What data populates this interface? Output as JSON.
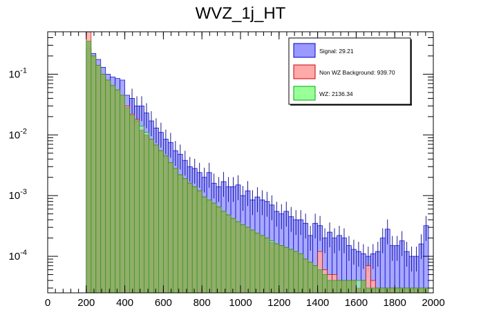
{
  "chart_data": {
    "type": "bar",
    "title": "WVZ_1j_HT",
    "xlabel": "",
    "ylabel": "",
    "yscale": "log",
    "xlim": [
      0,
      2000
    ],
    "ylim": [
      2.5e-05,
      0.5
    ],
    "bin_width": 25,
    "x_ticks": [
      "0",
      "200",
      "400",
      "600",
      "800",
      "1000",
      "1200",
      "1400",
      "1600",
      "1800",
      "2000"
    ],
    "y_ticks": [
      {
        "base": "10",
        "exp": "-1",
        "value": 0.1
      },
      {
        "base": "10",
        "exp": "-2",
        "value": 0.01
      },
      {
        "base": "10",
        "exp": "-3",
        "value": 0.001
      },
      {
        "base": "10",
        "exp": "-4",
        "value": 0.0001
      }
    ],
    "legend_position": "top-right",
    "series": [
      {
        "name": "Signal: 29.21",
        "color": "#9999ff",
        "edge": "#0000cc",
        "start": 200,
        "values": [
          0.27,
          0.22,
          0.175,
          0.13,
          0.1,
          0.09,
          0.085,
          0.08,
          0.045,
          0.04,
          0.03,
          0.03,
          0.023,
          0.017,
          0.013,
          0.011,
          0.0085,
          0.0075,
          0.0055,
          0.0048,
          0.0038,
          0.003,
          0.0028,
          0.0024,
          0.002,
          0.0024,
          0.0016,
          0.0014,
          0.0017,
          0.0014,
          0.0014,
          0.0015,
          0.001,
          0.0012,
          0.00085,
          0.00095,
          0.00085,
          0.0008,
          0.0007,
          0.00055,
          0.0005,
          0.00055,
          0.00045,
          0.0004,
          0.0004,
          0.00035,
          0.00022,
          0.00035,
          0.00032,
          0.0002,
          0.00025,
          0.0002,
          0.00022,
          0.0002,
          0.00015,
          0.00013,
          0.00012,
          0.00011,
          0.0001,
          0.00011,
          0.00012,
          0.0002,
          0.00028,
          0.00015,
          0.00015,
          0.00018,
          0.00012,
          0.0001,
          0.0001,
          0.00016,
          0.00032
        ]
      },
      {
        "name": "Non WZ Background: 939.70",
        "color": "#ffaaaa",
        "edge": "#cc0000",
        "start": 200,
        "values": [
          0.5,
          0.2,
          0.14,
          0.1,
          0.08,
          0.065,
          0.055,
          0.045,
          0.03,
          0.022,
          0.018,
          0.012,
          0.01,
          0.0085,
          0.0068,
          0.0055,
          0.0045,
          0.0035,
          0.0028,
          0.0022,
          0.0019,
          0.0016,
          0.0014,
          0.0012,
          0.00095,
          0.00085,
          0.00075,
          0.00065,
          0.00055,
          0.00048,
          0.00042,
          0.00037,
          0.00033,
          0.0003,
          0.00027,
          0.00024,
          0.00022,
          0.0002,
          0.00017,
          0.00016,
          0.00015,
          0.00014,
          0.00013,
          0.00012,
          0.00011,
          9e-05,
          8e-05,
          7e-05,
          0.00012,
          6e-05,
          5e-05,
          5e-05,
          4e-05,
          4e-05,
          4e-05,
          4e-05,
          3e-05,
          4e-05,
          7e-05,
          4e-05,
          3e-05,
          3e-05,
          3e-05,
          3e-05,
          3e-05,
          3e-05,
          3e-05,
          3e-05,
          3e-05,
          3e-05,
          3e-05
        ]
      },
      {
        "name": "WZ: 2136.34",
        "color": "#99ff99",
        "edge": "#00aa00",
        "start": 200,
        "values": [
          0.35,
          0.2,
          0.14,
          0.1,
          0.08,
          0.065,
          0.055,
          0.045,
          0.028,
          0.021,
          0.017,
          0.014,
          0.011,
          0.0085,
          0.0068,
          0.0055,
          0.0045,
          0.0035,
          0.0028,
          0.0022,
          0.0019,
          0.0016,
          0.0014,
          0.0012,
          0.00095,
          0.00085,
          0.00075,
          0.00065,
          0.00055,
          0.00048,
          0.00042,
          0.00037,
          0.00033,
          0.0003,
          0.00027,
          0.00024,
          0.00022,
          0.0002,
          0.00018,
          0.00016,
          0.00015,
          0.00014,
          0.00013,
          0.00012,
          0.00011,
          9e-05,
          8e-05,
          7e-05,
          6e-05,
          5e-05,
          4e-05,
          4e-05,
          4e-05,
          4e-05,
          4e-05,
          4e-05,
          4e-05,
          4e-05,
          3e-05,
          3e-05,
          3e-05,
          3e-05,
          3e-05,
          3e-05,
          3e-05,
          3e-05,
          3e-05,
          3e-05,
          3e-05,
          3e-05,
          3e-05
        ]
      }
    ]
  }
}
